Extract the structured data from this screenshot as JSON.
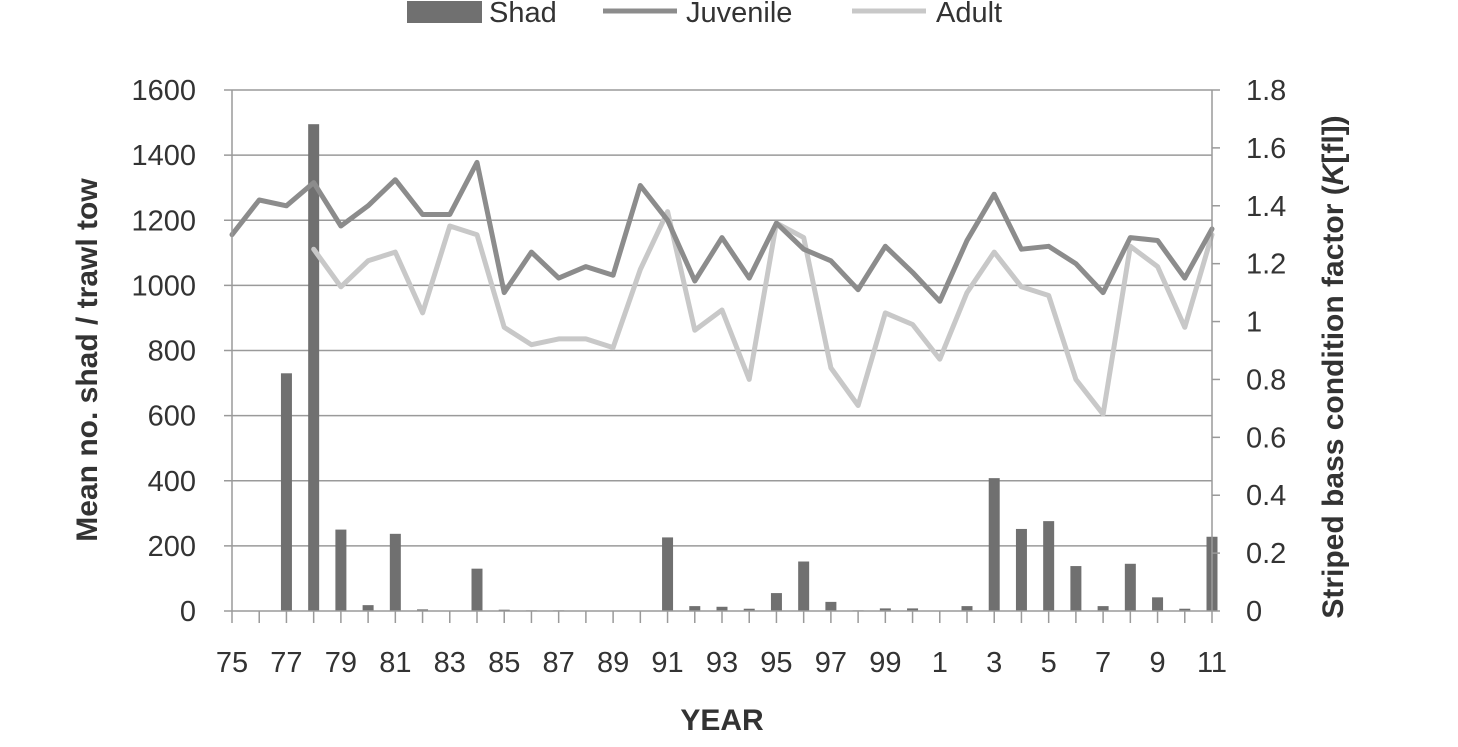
{
  "chart_data": {
    "type": "bar+line",
    "categories": [
      "75",
      "76",
      "77",
      "78",
      "79",
      "80",
      "81",
      "82",
      "83",
      "84",
      "85",
      "86",
      "87",
      "88",
      "89",
      "90",
      "91",
      "92",
      "93",
      "94",
      "95",
      "96",
      "97",
      "98",
      "99",
      "0",
      "1",
      "2",
      "3",
      "4",
      "5",
      "6",
      "7",
      "8",
      "9",
      "10",
      "11"
    ],
    "x_tick_labels": [
      "75",
      "77",
      "79",
      "81",
      "83",
      "85",
      "87",
      "89",
      "91",
      "93",
      "95",
      "97",
      "99",
      "1",
      "3",
      "5",
      "7",
      "9",
      "11"
    ],
    "xlabel": "YEAR",
    "ylabel_left": "Mean no. shad / trawl tow",
    "ylabel_right_parts": [
      "Striped bass condition factor (",
      "K",
      "[fl])"
    ],
    "ylim_left": [
      0,
      1600
    ],
    "ylim_right": [
      0,
      1.8
    ],
    "yticks_left": [
      "0",
      "200",
      "400",
      "600",
      "800",
      "1000",
      "1200",
      "1400",
      "1600"
    ],
    "yticks_right": [
      "0",
      "0.2",
      "0.4",
      "0.6",
      "0.8",
      "1",
      "1.2",
      "1.4",
      "1.6",
      "1.8"
    ],
    "grid": true,
    "legend_position": "top",
    "series": [
      {
        "name": "Shad",
        "kind": "bar",
        "axis": "left",
        "color": "#707070",
        "values": [
          0,
          0,
          730,
          1495,
          250,
          18,
          237,
          5,
          0,
          130,
          4,
          2,
          2,
          0,
          0,
          0,
          226,
          15,
          13,
          7,
          55,
          152,
          28,
          2,
          8,
          8,
          0,
          15,
          408,
          252,
          276,
          138,
          15,
          145,
          42,
          7,
          228
        ]
      },
      {
        "name": "Juvenile",
        "kind": "line",
        "axis": "right",
        "color": "#8c8c8c",
        "values": [
          1.3,
          1.42,
          1.4,
          1.48,
          1.33,
          1.4,
          1.49,
          1.37,
          1.37,
          1.55,
          1.1,
          1.24,
          1.15,
          1.19,
          1.16,
          1.47,
          1.35,
          1.14,
          1.29,
          1.15,
          1.34,
          1.25,
          1.21,
          1.11,
          1.26,
          1.17,
          1.07,
          1.28,
          1.44,
          1.25,
          1.26,
          1.2,
          1.1,
          1.29,
          1.28,
          1.15,
          1.32
        ]
      },
      {
        "name": "Adult",
        "kind": "line",
        "axis": "right",
        "color": "#c8c8c8",
        "values": [
          null,
          null,
          null,
          1.25,
          1.12,
          1.21,
          1.24,
          1.03,
          1.33,
          1.3,
          0.98,
          0.92,
          0.94,
          0.94,
          0.91,
          1.18,
          1.38,
          0.97,
          1.04,
          0.8,
          1.34,
          1.29,
          0.84,
          0.71,
          1.03,
          0.99,
          0.87,
          1.1,
          1.24,
          1.12,
          1.09,
          0.8,
          0.68,
          1.26,
          1.19,
          0.98,
          1.3
        ]
      }
    ]
  }
}
